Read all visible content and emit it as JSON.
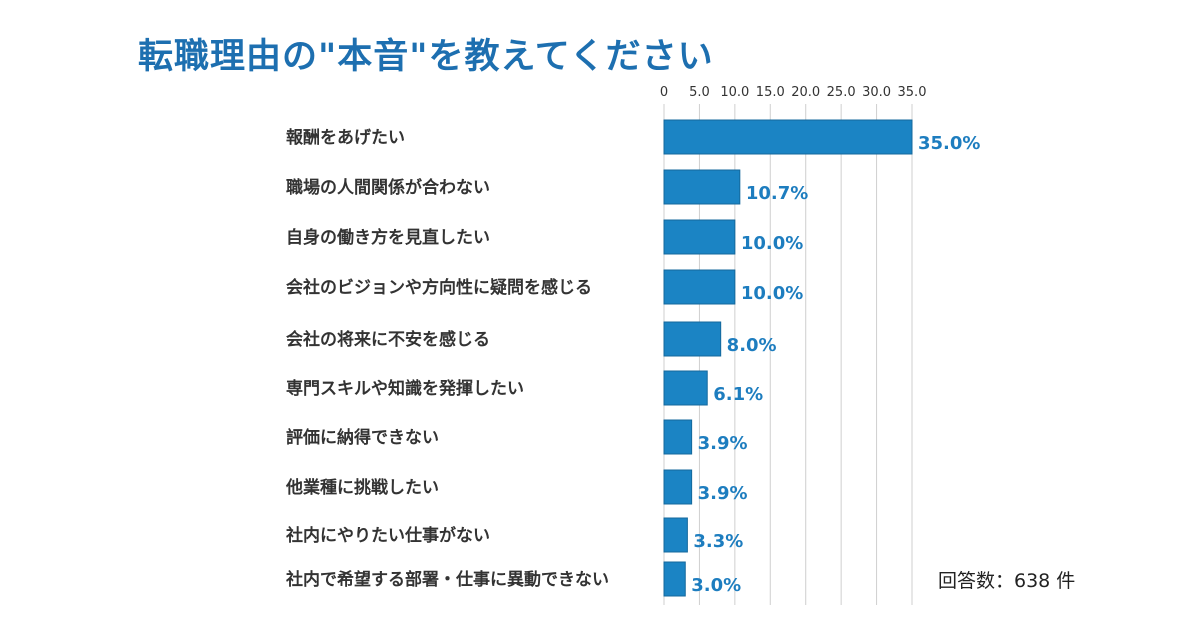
{
  "title": "転職理由の\"本音\"を教えてください",
  "note": "回答数：638 件",
  "colors": {
    "bar": "#1b84c4",
    "bar_stroke": "#14689c",
    "label": "#1d7dbf",
    "title": "#1d6fb0",
    "grid": "#cfcfcf"
  },
  "chart_data": {
    "type": "bar",
    "orientation": "horizontal",
    "categories": [
      "報酬をあげたい",
      "職場の人間関係が合わない",
      "自身の働き方を見直したい",
      "会社のビジョンや方向性に疑問を感じる",
      "会社の将来に不安を感じる",
      "専門スキルや知識を発揮したい",
      "評価に納得できない",
      "他業種に挑戦したい",
      "社内にやりたい仕事がない",
      "社内で希望する部署・仕事に異動できない"
    ],
    "values": [
      35.0,
      10.7,
      10.0,
      10.0,
      8.0,
      6.1,
      3.9,
      3.9,
      3.3,
      3.0
    ],
    "value_labels": [
      "35.0%",
      "10.7%",
      "10.0%",
      "10.0%",
      "8.0%",
      "6.1%",
      "3.9%",
      "3.9%",
      "3.3%",
      "3.0%"
    ],
    "xticks": [
      "0",
      "5.0",
      "10.0",
      "15.0",
      "20.0",
      "25.0",
      "30.0",
      "35.0"
    ],
    "xlim": [
      0,
      35
    ],
    "grid": true,
    "axis_position": "top"
  }
}
